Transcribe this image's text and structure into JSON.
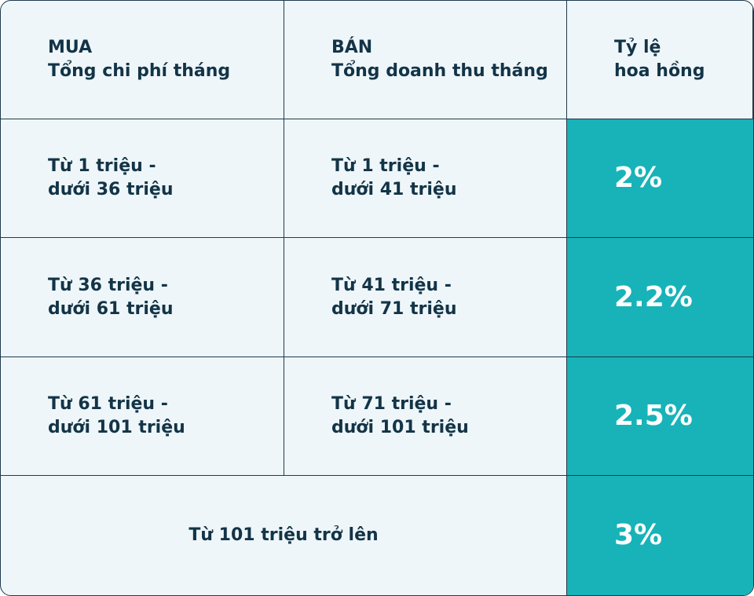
{
  "table": {
    "header": [
      [
        "MUA",
        "Tổng chi phí tháng"
      ],
      [
        "BÁN",
        "Tổng doanh thu tháng"
      ],
      [
        "Tỷ lệ",
        "hoa hồng"
      ]
    ],
    "rows": [
      {
        "buy": [
          "Từ 1 triệu -",
          "dưới 36 triệu"
        ],
        "sell": [
          "Từ 1 triệu -",
          "dưới 41 triệu"
        ],
        "rate": "2%"
      },
      {
        "buy": [
          "Từ 36 triệu -",
          "dưới 61 triệu"
        ],
        "sell": [
          "Từ 41 triệu -",
          "dưới 71 triệu"
        ],
        "rate": "2.2%"
      },
      {
        "buy": [
          "Từ 61 triệu -",
          "dưới 101 triệu"
        ],
        "sell": [
          "Từ 71 triệu -",
          "dưới 101 triệu"
        ],
        "rate": "2.5%"
      }
    ],
    "last_row": {
      "range": "Từ 101 triệu trở lên",
      "rate": "3%"
    }
  }
}
